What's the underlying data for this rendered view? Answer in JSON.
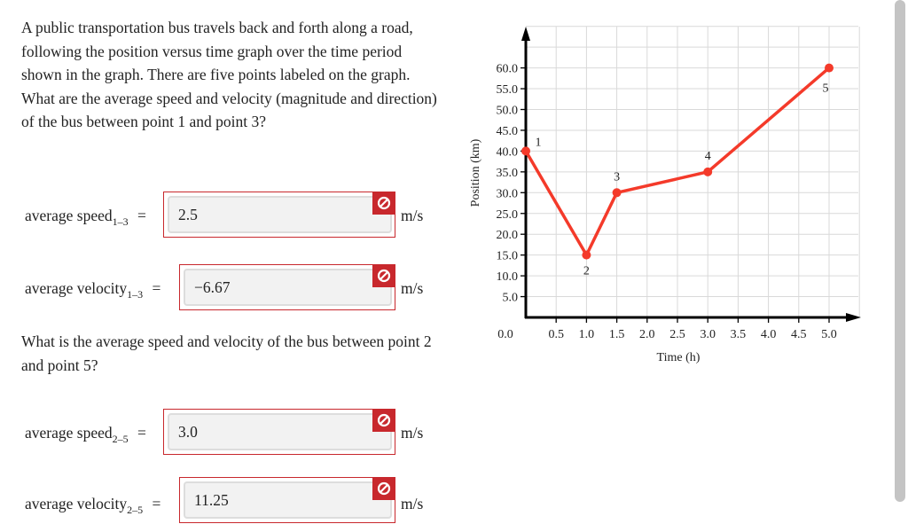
{
  "question1": "A public transportation bus travels back and forth along a road, following the position versus time graph over the time period shown in the graph. There are five points labeled on the graph. What are the average speed and velocity (magnitude and direction) of the bus between point 1 and point 3?",
  "question2": "What is the average speed and velocity of the bus between point 2 and point 5?",
  "answers": [
    {
      "label": "average speed",
      "sub": "1–3",
      "eq": "=",
      "value": "2.5",
      "unit": "m/s",
      "status": "incorrect"
    },
    {
      "label": "average velocity",
      "sub": "1–3",
      "eq": "=",
      "value": "−6.67",
      "unit": "m/s",
      "status": "incorrect"
    },
    {
      "label": "average speed",
      "sub": "2–5",
      "eq": "=",
      "value": "3.0",
      "unit": "m/s",
      "status": "incorrect"
    },
    {
      "label": "average velocity",
      "sub": "2–5",
      "eq": "=",
      "value": "11.25",
      "unit": "m/s",
      "status": "incorrect"
    }
  ],
  "colors": {
    "error": "#c8282d",
    "line": "#f43a2a",
    "grid": "#d9d9d9"
  },
  "chart_data": {
    "type": "line",
    "xlabel": "Time (h)",
    "ylabel": "Position (km)",
    "xlim": [
      0,
      5.5
    ],
    "ylim": [
      0,
      70
    ],
    "grid": true,
    "x_ticks": [
      "0.0",
      "0.5",
      "1.0",
      "1.5",
      "2.0",
      "2.5",
      "3.0",
      "3.5",
      "4.0",
      "4.5",
      "5.0"
    ],
    "y_ticks": [
      "5.0",
      "10.0",
      "15.0",
      "20.0",
      "25.0",
      "30.0",
      "35.0",
      "40.0",
      "45.0",
      "50.0",
      "55.0",
      "60.0"
    ],
    "points": [
      {
        "label": "1",
        "x": 0,
        "y": 40
      },
      {
        "label": "2",
        "x": 1.0,
        "y": 15
      },
      {
        "label": "3",
        "x": 1.5,
        "y": 30
      },
      {
        "label": "4",
        "x": 3.0,
        "y": 35
      },
      {
        "label": "5",
        "x": 5.0,
        "y": 60
      }
    ]
  }
}
